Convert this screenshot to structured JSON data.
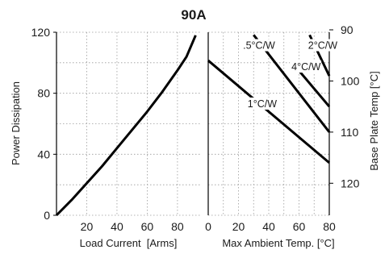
{
  "chart_data": {
    "type": "line",
    "title": "90A",
    "grid": true,
    "left_panel": {
      "xlabel": "Load Current  [Arms]",
      "ylabel": "Power Dissipation",
      "xlim": [
        0,
        95
      ],
      "ylim": [
        0,
        120
      ],
      "x_ticks": [
        20,
        40,
        60,
        80
      ],
      "y_ticks": [
        0,
        40,
        80,
        120
      ],
      "series": [
        {
          "x": [
            0,
            10,
            20,
            30,
            40,
            50,
            60,
            70,
            80,
            86,
            92
          ],
          "y": [
            0,
            10,
            21,
            32,
            44,
            56,
            68,
            81,
            95,
            104,
            118
          ]
        }
      ]
    },
    "right_panel": {
      "xlabel": "Max Ambient Temp. [°C]",
      "ylabel": "Base Plate Temp [°C]",
      "xlim": [
        0,
        80
      ],
      "ylim": [
        125,
        90
      ],
      "x_ticks": [
        0,
        20,
        40,
        60,
        80
      ],
      "y_ticks": [
        90,
        100,
        110,
        120
      ],
      "series": [
        {
          "name": "1°C/W",
          "x": [
            0,
            80
          ],
          "y": [
            96,
            116
          ]
        },
        {
          "name": ".5°C/W",
          "x": [
            30,
            80
          ],
          "y": [
            91,
            110
          ]
        },
        {
          "name": "4°C/W",
          "x": [
            60,
            80
          ],
          "y": [
            98,
            105
          ]
        },
        {
          "name": "2°C/W",
          "x": [
            67,
            80
          ],
          "y": [
            91,
            99
          ]
        }
      ]
    }
  }
}
